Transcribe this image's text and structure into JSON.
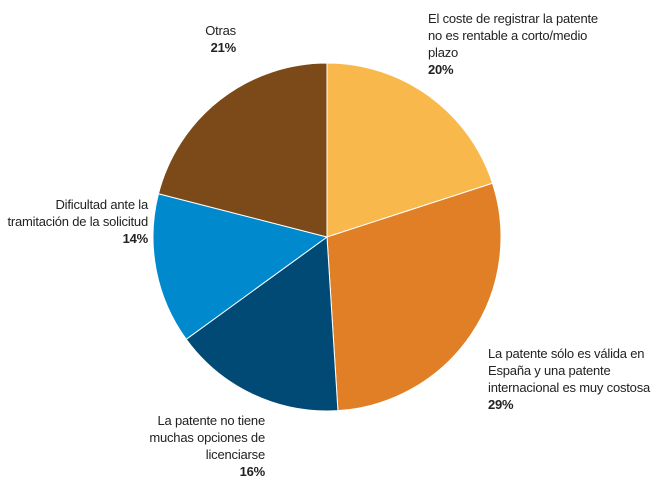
{
  "chart_data": {
    "type": "pie",
    "categories": [
      "El coste de registrar la patente no es rentable a corto/medio plazo",
      "La patente sólo es válida en España y una patente internacional es muy costosa",
      "La patente no tiene muchas opciones de licenciarse",
      "Dificultad ante la tramitación de la solicitud",
      "Otras"
    ],
    "values": [
      20,
      29,
      16,
      14,
      21
    ],
    "value_labels": [
      "20%",
      "29%",
      "16%",
      "14%",
      "21%"
    ],
    "colors": [
      "#f9b84b",
      "#e07f26",
      "#004a75",
      "#0089cc",
      "#7b4a18"
    ]
  }
}
